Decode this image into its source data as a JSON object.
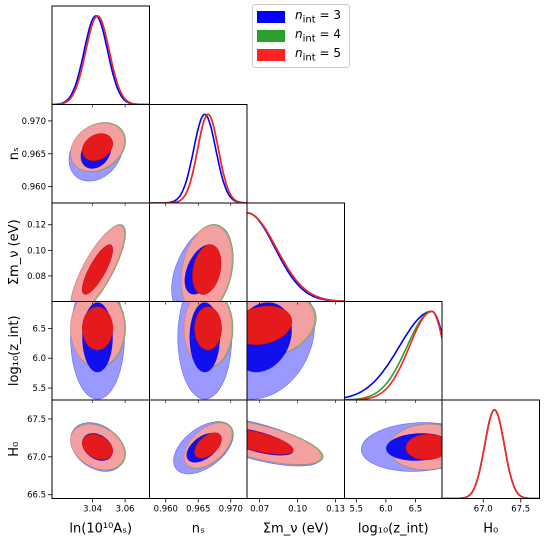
{
  "chart_data": {
    "type": "triangle-plot",
    "parameters": [
      {
        "key": "lnAs",
        "label": "ln(10¹⁰Aₛ)",
        "range": [
          3.015,
          3.075
        ],
        "ticks": [
          3.04,
          3.06
        ],
        "tick_labels": [
          "3.04",
          "3.06"
        ]
      },
      {
        "key": "ns",
        "label": "nₛ",
        "range": [
          0.9575,
          0.9725
        ],
        "ticks": [
          0.96,
          0.965,
          0.97
        ],
        "tick_labels": [
          "0.960",
          "0.965",
          "0.970"
        ]
      },
      {
        "key": "mnu",
        "label": "Σm_ν (eV)",
        "range": [
          0.06,
          0.137
        ],
        "ticks": [
          0.07,
          0.1,
          0.13
        ],
        "tick_labels": [
          "0.07",
          "0.10",
          "0.13"
        ]
      },
      {
        "key": "logz",
        "label": "log₁₀(z_int)",
        "range": [
          5.3,
          6.95
        ],
        "ticks": [
          5.5,
          6.0,
          6.5
        ],
        "tick_labels": [
          "5.5",
          "6.0",
          "6.5"
        ]
      },
      {
        "key": "H0",
        "label": "H₀",
        "range": [
          66.45,
          67.75
        ],
        "ticks": [
          67.0,
          67.5
        ],
        "tick_labels": [
          "67.0",
          "67.5"
        ]
      }
    ],
    "row_tick_labels": {
      "ns": [
        "0.960",
        "0.965",
        "0.970"
      ],
      "mnu": [
        "0.08",
        "0.10",
        "0.12"
      ],
      "logz": [
        "5.5",
        "6.0",
        "6.5"
      ],
      "H0": [
        "66.5",
        "67.0",
        "67.5"
      ]
    },
    "row_ticks": {
      "ns": [
        0.96,
        0.965,
        0.97
      ],
      "mnu": [
        0.08,
        0.1,
        0.12
      ],
      "logz": [
        5.5,
        6.0,
        6.5
      ],
      "H0": [
        66.5,
        67.0,
        67.5
      ]
    },
    "row_labels": {
      "ns": "nₛ",
      "mnu": "Σm_ν (eV)",
      "logz": "log₁₀(z_int)",
      "H0": "H₀"
    },
    "series": [
      {
        "name": "n_int = 3",
        "legend_text": "= 3",
        "color": "#0000ff",
        "fill": "#9999ff"
      },
      {
        "name": "n_int = 4",
        "legend_text": "= 4",
        "color": "#2ca02c",
        "fill": "#80c080"
      },
      {
        "name": "n_int = 5",
        "legend_text": "= 5",
        "color": "#ff2222",
        "fill": "#f4a0a0"
      }
    ],
    "legend_prefix": "n",
    "legend_sub": "int",
    "legend_position": "top-right",
    "marginals": {
      "lnAs": [
        {
          "mean": 3.042,
          "sd": 0.0072
        },
        {
          "mean": 3.043,
          "sd": 0.0072
        },
        {
          "mean": 3.043,
          "sd": 0.0072
        }
      ],
      "ns": [
        {
          "mean": 0.966,
          "sd": 0.0017
        },
        {
          "mean": 0.9665,
          "sd": 0.0016
        },
        {
          "mean": 0.9665,
          "sd": 0.0016
        }
      ],
      "mnu": [
        {
          "type": "half-gauss",
          "start": 0.06,
          "sd": 0.022
        },
        {
          "type": "half-gauss",
          "start": 0.06,
          "sd": 0.023
        },
        {
          "type": "half-gauss",
          "start": 0.06,
          "sd": 0.023
        }
      ],
      "logz": [
        {
          "type": "skew",
          "peak": 6.78,
          "lo_sd": 0.55,
          "hi_sd": 0.22
        },
        {
          "type": "skew",
          "peak": 6.78,
          "lo_sd": 0.42,
          "hi_sd": 0.2
        },
        {
          "type": "skew",
          "peak": 6.78,
          "lo_sd": 0.38,
          "hi_sd": 0.2
        }
      ],
      "H0": [
        {
          "mean": 67.15,
          "sd": 0.13
        },
        {
          "mean": 67.15,
          "sd": 0.13
        },
        {
          "mean": 67.15,
          "sd": 0.13
        }
      ]
    },
    "contours": [
      {
        "x": "lnAs",
        "y": "ns",
        "blue": {
          "cx": 3.042,
          "cy": 0.9652,
          "sx": 0.0072,
          "sy": 0.0019,
          "rho": 0.25
        },
        "red": {
          "cx": 3.043,
          "cy": 0.966,
          "sx": 0.0072,
          "sy": 0.0016,
          "rho": 0.25
        }
      },
      {
        "x": "lnAs",
        "y": "mnu",
        "blue": {
          "cx": 3.043,
          "cy": 0.085,
          "sx": 0.0072,
          "sy": 0.015,
          "rho": 0.8
        },
        "red": {
          "cx": 3.043,
          "cy": 0.085,
          "sx": 0.0072,
          "sy": 0.015,
          "rho": 0.8
        }
      },
      {
        "x": "ns",
        "y": "mnu",
        "blue": {
          "cx": 0.9655,
          "cy": 0.085,
          "sx": 0.002,
          "sy": 0.015,
          "rho": 0.45
        },
        "red": {
          "cx": 0.9663,
          "cy": 0.085,
          "sx": 0.0017,
          "sy": 0.015,
          "rho": 0.25
        }
      },
      {
        "x": "lnAs",
        "y": "logz",
        "blue": {
          "cx": 3.043,
          "cy": 6.35,
          "sx": 0.0072,
          "sy": 0.45,
          "rho": 0.0
        },
        "red": {
          "cx": 3.043,
          "cy": 6.5,
          "sx": 0.0072,
          "sy": 0.28,
          "rho": 0.0
        }
      },
      {
        "x": "ns",
        "y": "logz",
        "blue": {
          "cx": 0.966,
          "cy": 6.35,
          "sx": 0.0018,
          "sy": 0.45,
          "rho": 0.0
        },
        "red": {
          "cx": 0.9665,
          "cy": 6.5,
          "sx": 0.0016,
          "sy": 0.28,
          "rho": 0.0
        }
      },
      {
        "x": "mnu",
        "y": "logz",
        "blue": {
          "cx": 0.072,
          "cy": 6.35,
          "sx": 0.018,
          "sy": 0.45,
          "rho": 0.2
        },
        "red": {
          "cx": 0.072,
          "cy": 6.55,
          "sx": 0.018,
          "sy": 0.25,
          "rho": 0.2
        }
      },
      {
        "x": "lnAs",
        "y": "H0",
        "blue": {
          "cx": 3.043,
          "cy": 67.13,
          "sx": 0.0072,
          "sy": 0.14,
          "rho": -0.3
        },
        "red": {
          "cx": 3.043,
          "cy": 67.13,
          "sx": 0.0072,
          "sy": 0.13,
          "rho": -0.3
        }
      },
      {
        "x": "ns",
        "y": "H0",
        "blue": {
          "cx": 0.9658,
          "cy": 67.12,
          "sx": 0.002,
          "sy": 0.15,
          "rho": 0.5
        },
        "red": {
          "cx": 0.9665,
          "cy": 67.15,
          "sx": 0.0016,
          "sy": 0.13,
          "rho": 0.5
        }
      },
      {
        "x": "mnu",
        "y": "H0",
        "blue": {
          "cx": 0.068,
          "cy": 67.2,
          "sx": 0.022,
          "sy": 0.14,
          "rho": -0.65
        },
        "red": {
          "cx": 0.068,
          "cy": 67.2,
          "sx": 0.022,
          "sy": 0.13,
          "rho": -0.65
        }
      },
      {
        "x": "logz",
        "y": "H0",
        "blue": {
          "cx": 6.55,
          "cy": 67.13,
          "sx": 0.42,
          "sy": 0.14,
          "rho": 0.1
        },
        "red": {
          "cx": 6.7,
          "cy": 67.13,
          "sx": 0.28,
          "sy": 0.13,
          "rho": 0.05
        }
      }
    ],
    "grid": false
  }
}
